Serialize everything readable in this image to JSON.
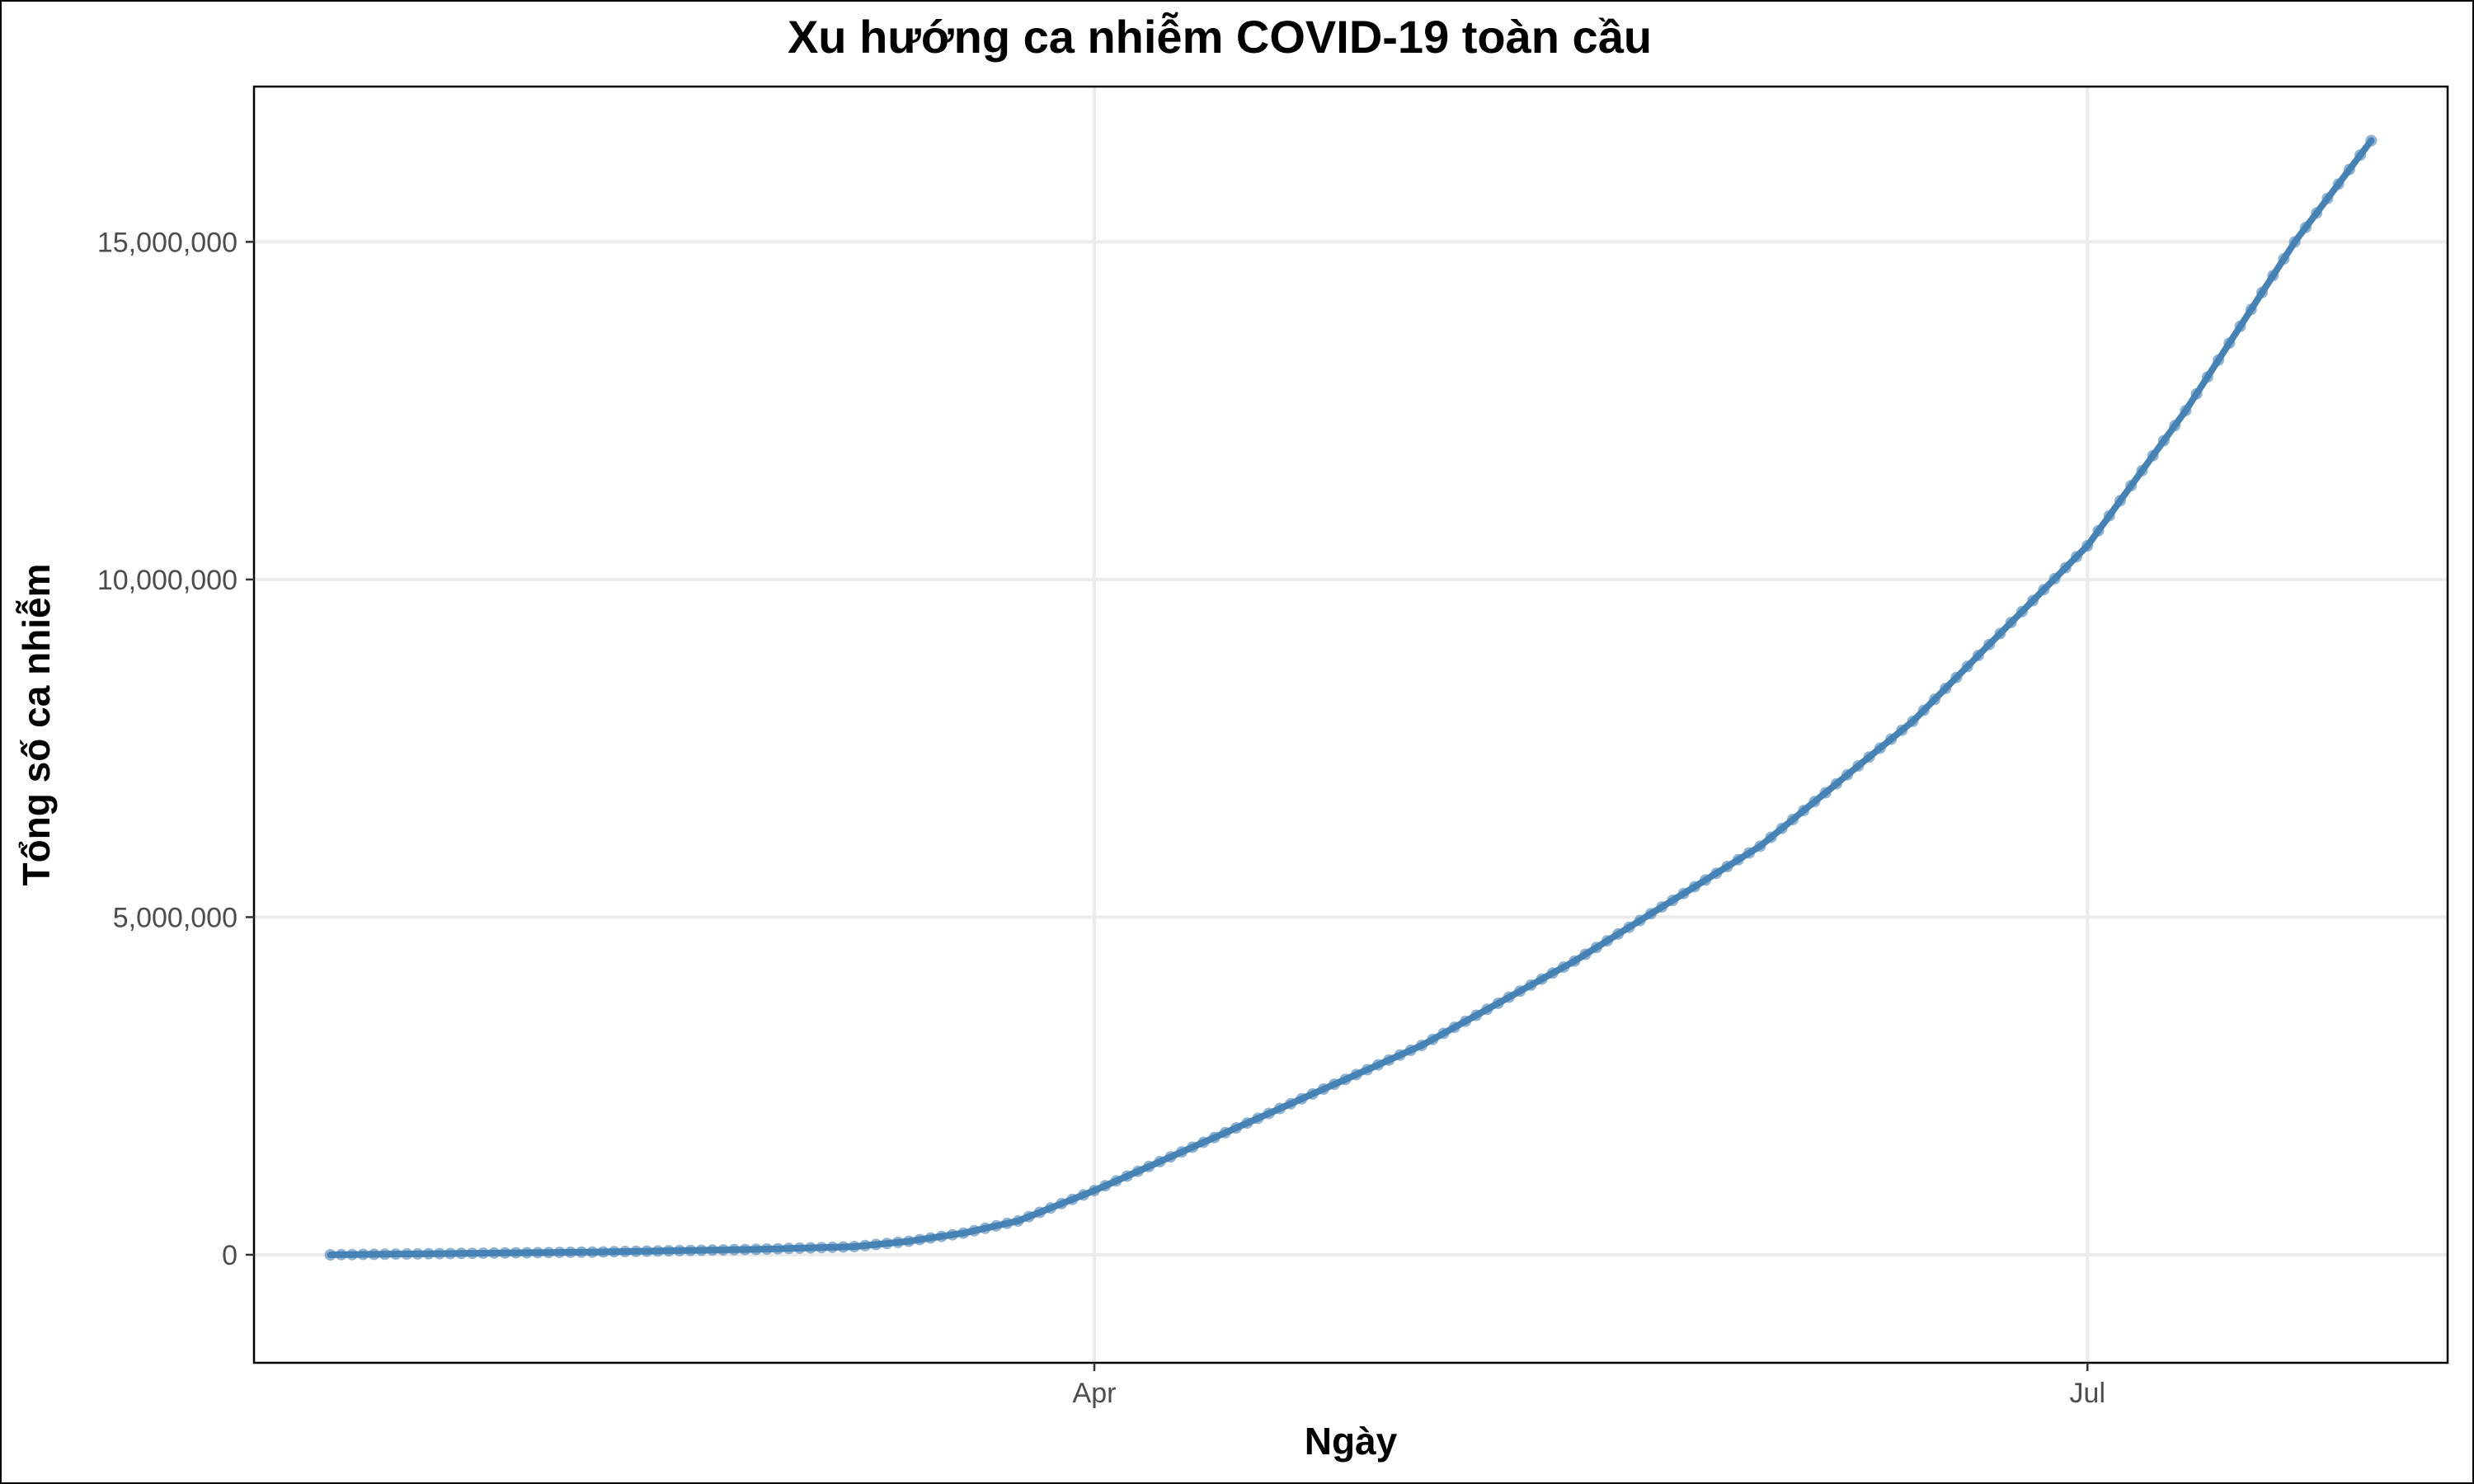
{
  "chart_data": {
    "type": "line",
    "title": "Xu hướng ca nhiễm COVID-19 toàn cầu",
    "xlabel": "Ngày",
    "ylabel": "Tổng số ca nhiễm",
    "x_start": "2020-01-22",
    "x_end": "2020-07-27",
    "xlim": [
      "2020-01-15",
      "2020-08-03"
    ],
    "x_ticks": [
      {
        "date": "2020-04-01",
        "label": "Apr"
      },
      {
        "date": "2020-07-01",
        "label": "Jul"
      }
    ],
    "ylim": [
      -1600000,
      17300000
    ],
    "y_ticks": [
      {
        "value": 0,
        "label": "0"
      },
      {
        "value": 5000000,
        "label": "5,000,000"
      },
      {
        "value": 10000000,
        "label": "10,000,000"
      },
      {
        "value": 15000000,
        "label": "15,000,000"
      }
    ],
    "grid": true,
    "color": "#4682b4",
    "series": [
      {
        "points": [
          [
            "2020-01-22",
            0
          ],
          [
            "2020-02-15",
            40000
          ],
          [
            "2020-03-01",
            80000
          ],
          [
            "2020-03-10",
            120000
          ],
          [
            "2020-03-15",
            200000
          ],
          [
            "2020-03-20",
            320000
          ],
          [
            "2020-03-25",
            500000
          ],
          [
            "2020-04-01",
            950000
          ],
          [
            "2020-04-15",
            1950000
          ],
          [
            "2020-05-01",
            3100000
          ],
          [
            "2020-05-15",
            4350000
          ],
          [
            "2020-06-01",
            6050000
          ],
          [
            "2020-06-15",
            7900000
          ],
          [
            "2020-07-01",
            10500000
          ],
          [
            "2020-07-10",
            12500000
          ],
          [
            "2020-07-20",
            15000000
          ],
          [
            "2020-07-27",
            16500000
          ]
        ]
      }
    ]
  }
}
